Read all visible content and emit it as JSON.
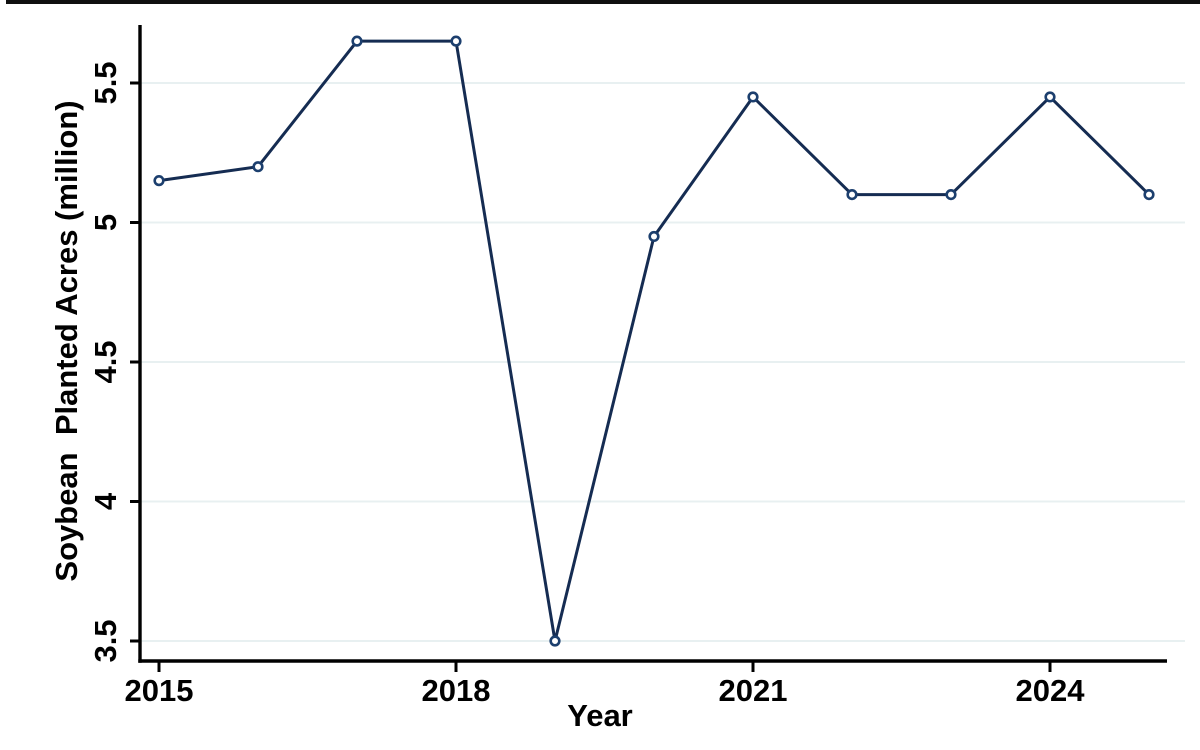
{
  "chart_data": {
    "type": "line",
    "title": "",
    "xlabel": "Year",
    "ylabel": "Soybean  Planted Acres (million)",
    "x": [
      2015,
      2016,
      2017,
      2018,
      2019,
      2020,
      2021,
      2022,
      2023,
      2024,
      2025
    ],
    "series": [
      {
        "name": "Soybean Planted Acres (million)",
        "values": [
          5.15,
          5.2,
          5.65,
          5.65,
          3.5,
          4.95,
          5.45,
          5.1,
          5.1,
          5.45,
          5.1
        ]
      }
    ],
    "xticks": [
      2015,
      2018,
      2021,
      2024
    ],
    "yticks": [
      3.5,
      4,
      4.5,
      5,
      5.5
    ],
    "xlim": [
      2014.8,
      2025.2
    ],
    "ylim": [
      3.43,
      5.71
    ],
    "grid": "horizontal",
    "legend": "none",
    "marker": "open-circle",
    "colors": {
      "line": "#152c52",
      "marker_stroke": "#1c3f6e",
      "marker_fill": "#ffffff",
      "axis": "#000000",
      "grid_line": "#e8f0f1",
      "text": "#000000",
      "background": "#ffffff",
      "top_border": "#101010"
    }
  }
}
